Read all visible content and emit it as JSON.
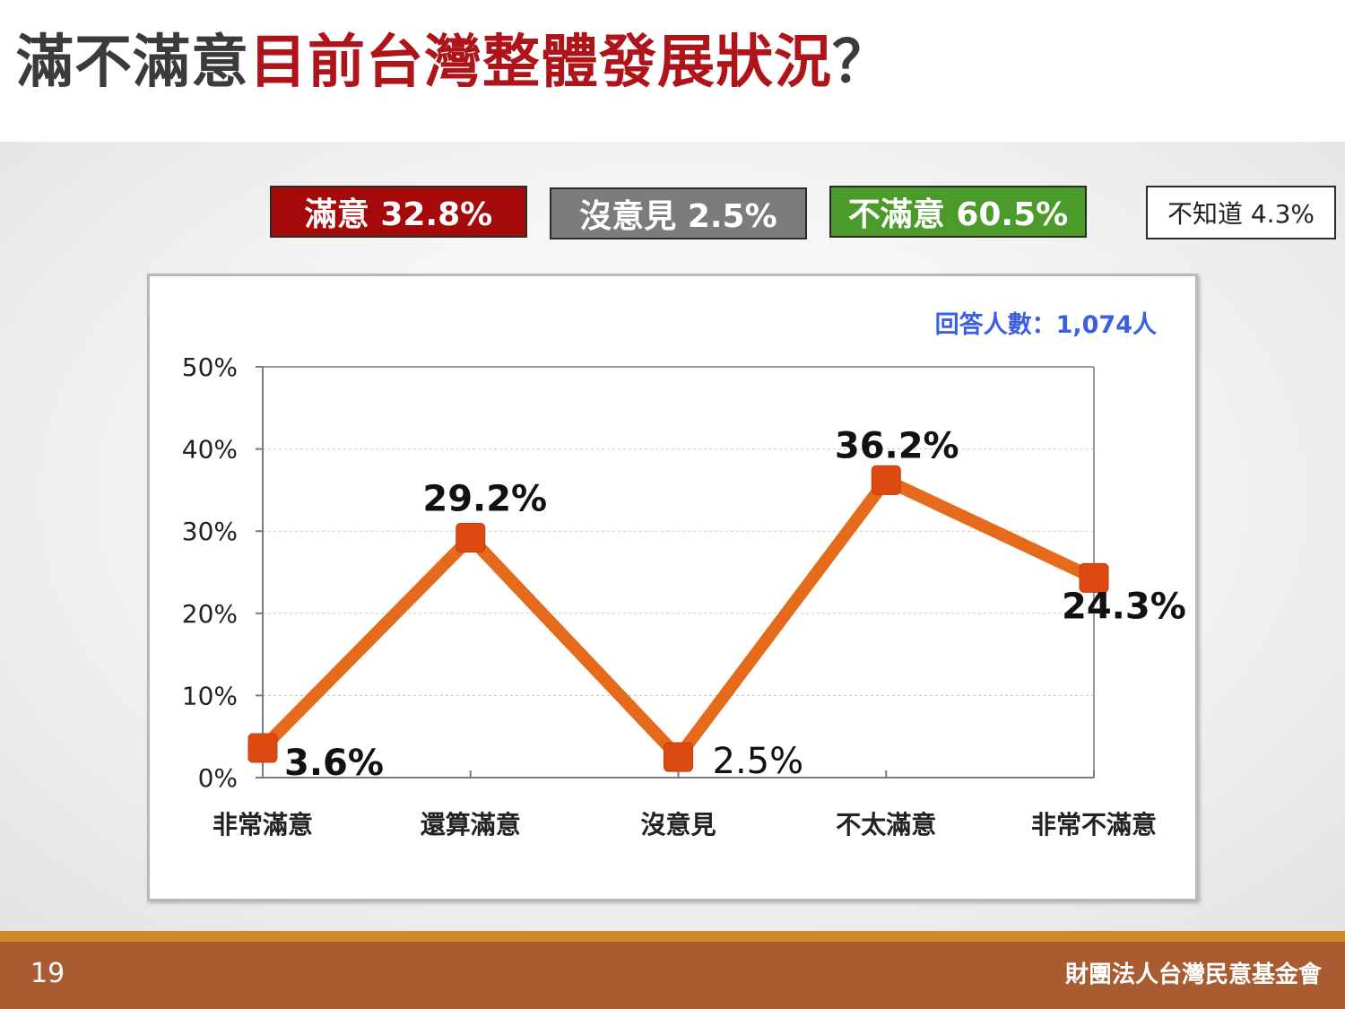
{
  "title": {
    "part1": "滿不滿意",
    "part2": "目前台灣整體發展狀況",
    "part3": "？"
  },
  "summary": {
    "satisfied": "滿意 32.8%",
    "neutral": "沒意見 2.5%",
    "dissatisfied": "不滿意 60.5%",
    "dont_know": "不知道 4.3%"
  },
  "respondents": "回答人數：1,074人",
  "colors": {
    "line": "#e56a1c",
    "marker": "#dc4a12",
    "satisfied": "#a50a0a",
    "neutral": "#7c7c7c",
    "dissatisfied": "#4b9b2a",
    "respondents": "#3b5fe0",
    "footer": "#a95b32"
  },
  "chart_data": {
    "type": "line",
    "categories": [
      "非常滿意",
      "還算滿意",
      "沒意見",
      "不太滿意",
      "非常不滿意"
    ],
    "series": [
      {
        "values": [
          3.6,
          29.2,
          2.5,
          36.2,
          24.3
        ]
      }
    ],
    "data_labels": [
      "3.6%",
      "29.2%",
      "2.5%",
      "36.2%",
      "24.3%"
    ],
    "ylim": [
      0,
      50
    ],
    "yticks": [
      0,
      10,
      20,
      30,
      40,
      50
    ],
    "ytick_labels": [
      "0%",
      "10%",
      "20%",
      "30%",
      "40%",
      "50%"
    ],
    "grid": true
  },
  "footer": {
    "page_number": "19",
    "organization": "財團法人台灣民意基金會"
  }
}
